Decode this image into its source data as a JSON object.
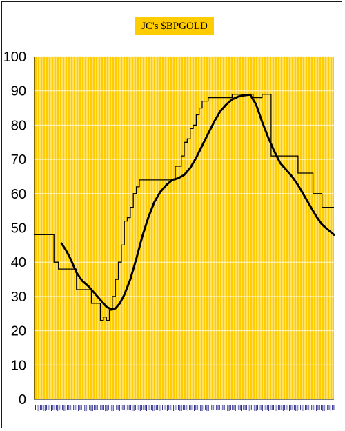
{
  "chart_data": {
    "type": "line",
    "title": "JC's $BPGOLD",
    "xlabel": "",
    "ylabel": "",
    "ylim": [
      0,
      100
    ],
    "yticks": [
      0,
      10,
      20,
      30,
      40,
      50,
      60,
      70,
      80,
      90,
      100
    ],
    "grid": true,
    "legend": "none",
    "plot_background": "#ffcc00",
    "x_index_range": [
      0,
      100
    ],
    "series": [
      {
        "style": "step",
        "color": "#000000",
        "x": [
          0,
          6.5,
          6.5,
          8,
          8,
          14,
          14,
          19,
          19,
          22,
          22,
          23,
          23,
          24,
          24,
          25,
          25,
          26,
          26,
          27,
          27,
          28,
          28,
          29,
          29,
          30,
          30,
          31,
          31,
          32,
          32,
          33,
          33,
          34,
          34,
          35,
          35,
          36,
          36,
          37,
          37,
          38,
          38,
          39,
          39,
          40,
          40,
          41,
          41,
          44,
          44,
          47,
          47,
          49,
          49,
          50,
          50,
          51,
          51,
          52,
          52,
          53,
          53,
          54,
          54,
          55,
          55,
          56,
          56,
          57,
          57,
          58,
          58,
          59,
          59,
          60,
          60,
          61,
          61,
          63,
          63,
          66,
          66,
          72,
          72,
          73,
          73,
          76,
          76,
          77,
          77,
          79,
          79,
          87,
          87,
          88,
          88,
          93,
          93,
          94,
          94,
          96,
          96,
          100
        ],
        "y": [
          48,
          48,
          40,
          40,
          38,
          38,
          32,
          32,
          28,
          28,
          23,
          23,
          24,
          24,
          23,
          23,
          26,
          26,
          30,
          30,
          35,
          35,
          40,
          40,
          45,
          45,
          52,
          52,
          53,
          53,
          56,
          56,
          60,
          60,
          62,
          62,
          64,
          64,
          64,
          64,
          64,
          64,
          64,
          64,
          64,
          64,
          64,
          64,
          64,
          64,
          64,
          64,
          68,
          68,
          71,
          71,
          75,
          75,
          76,
          76,
          79,
          79,
          80,
          80,
          83,
          83,
          85,
          85,
          87,
          87,
          87,
          87,
          88,
          88,
          88,
          88,
          88,
          88,
          88,
          88,
          88,
          88,
          89,
          89,
          89,
          89,
          88,
          88,
          89,
          89,
          89,
          89,
          71,
          71,
          71,
          71,
          66,
          66,
          60,
          60,
          60,
          60,
          56,
          56
        ]
      },
      {
        "style": "smooth",
        "color": "#000000",
        "x": [
          9,
          10.5,
          12,
          14,
          16,
          18,
          20,
          22,
          24,
          25.5,
          27,
          28.5,
          30,
          32,
          34,
          36,
          38,
          40,
          42,
          44,
          46,
          48,
          50,
          52,
          54,
          56,
          58,
          60,
          62,
          64,
          66,
          68,
          70,
          72,
          74,
          76,
          78,
          80,
          82,
          84,
          86,
          88,
          90,
          92,
          94,
          96,
          98,
          100
        ],
        "y": [
          45.5,
          43.5,
          41,
          37,
          34.5,
          33,
          31,
          29,
          27,
          26.3,
          26.5,
          28,
          30.5,
          35,
          41,
          47.5,
          53,
          57.5,
          60.5,
          62.5,
          64,
          64.5,
          65.5,
          67.5,
          70.5,
          74,
          77.5,
          81,
          84,
          86,
          87.5,
          88.3,
          88.7,
          88.9,
          86,
          81,
          76.5,
          72.5,
          69,
          67,
          65,
          62.5,
          59.5,
          56.5,
          53.5,
          51,
          49.5,
          48
        ]
      }
    ]
  }
}
